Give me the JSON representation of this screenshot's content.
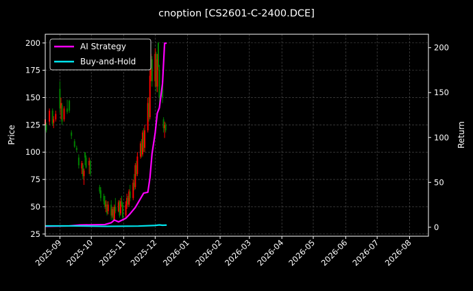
{
  "chart_data": {
    "type": "candlestick+line",
    "title": "cnoption [CS2601-C-2400.DCE]",
    "ylabel": "Price",
    "y2label": "Return",
    "ylim": [
      23,
      208
    ],
    "y2lim": [
      -10,
      215
    ],
    "xlim": [
      "2025-08-18",
      "2026-08-19"
    ],
    "grid": true,
    "legend_placement": "top-left",
    "yticks": [
      25,
      50,
      75,
      100,
      125,
      150,
      175,
      200
    ],
    "y2ticks": [
      0,
      50,
      100,
      150,
      200
    ],
    "xticks": [
      "2025-09",
      "2025-10",
      "2025-11",
      "2025-12",
      "2026-01",
      "2026-02",
      "2026-03",
      "2026-04",
      "2026-05",
      "2026-06",
      "2026-07",
      "2026-08"
    ],
    "up_color": "#ff0000",
    "down_color": "#008000",
    "candles_columns": [
      "date",
      "open",
      "high",
      "low",
      "close"
    ],
    "candles": [
      [
        "2025-08-18",
        125,
        135,
        122,
        130
      ],
      [
        "2025-08-19",
        125,
        127,
        118,
        120
      ],
      [
        "2025-08-22",
        128,
        140,
        125,
        138
      ],
      [
        "2025-08-25",
        138,
        140,
        124,
        126
      ],
      [
        "2025-08-26",
        127,
        133,
        122,
        130
      ],
      [
        "2025-08-28",
        130,
        138,
        128,
        135
      ],
      [
        "2025-09-01",
        158,
        165,
        136,
        140
      ],
      [
        "2025-09-02",
        140,
        150,
        130,
        145
      ],
      [
        "2025-09-03",
        143,
        145,
        125,
        128
      ],
      [
        "2025-09-05",
        130,
        142,
        128,
        140
      ],
      [
        "2025-09-08",
        140,
        148,
        135,
        137
      ],
      [
        "2025-09-10",
        147,
        148,
        136,
        138
      ],
      [
        "2025-09-12",
        118,
        120,
        112,
        115
      ],
      [
        "2025-09-15",
        110,
        112,
        104,
        105
      ],
      [
        "2025-09-17",
        104,
        106,
        100,
        102
      ],
      [
        "2025-09-19",
        95,
        98,
        85,
        88
      ],
      [
        "2025-09-22",
        85,
        92,
        80,
        90
      ],
      [
        "2025-09-23",
        88,
        90,
        75,
        78
      ],
      [
        "2025-09-24",
        78,
        85,
        70,
        83
      ],
      [
        "2025-09-25",
        100,
        100,
        88,
        95
      ],
      [
        "2025-09-26",
        95,
        97,
        85,
        86
      ],
      [
        "2025-09-29",
        88,
        95,
        80,
        92
      ],
      [
        "2025-09-30",
        92,
        93,
        78,
        80
      ],
      [
        "2025-10-09",
        68,
        70,
        62,
        64
      ],
      [
        "2025-10-10",
        65,
        68,
        55,
        58
      ],
      [
        "2025-10-13",
        60,
        62,
        52,
        55
      ],
      [
        "2025-10-14",
        55,
        60,
        48,
        50
      ],
      [
        "2025-10-15",
        50,
        56,
        45,
        52
      ],
      [
        "2025-10-16",
        52,
        55,
        42,
        44
      ],
      [
        "2025-10-17",
        46,
        55,
        43,
        52
      ],
      [
        "2025-10-20",
        52,
        56,
        38,
        42
      ],
      [
        "2025-10-21",
        42,
        50,
        40,
        48
      ],
      [
        "2025-10-22",
        48,
        50,
        36,
        38
      ],
      [
        "2025-10-23",
        38,
        52,
        37,
        50
      ],
      [
        "2025-10-24",
        50,
        58,
        44,
        46
      ],
      [
        "2025-10-27",
        46,
        56,
        45,
        54
      ],
      [
        "2025-10-28",
        55,
        56,
        40,
        42
      ],
      [
        "2025-10-29",
        44,
        58,
        42,
        55
      ],
      [
        "2025-10-30",
        55,
        60,
        50,
        52
      ],
      [
        "2025-10-31",
        52,
        54,
        38,
        40
      ],
      [
        "2025-11-03",
        42,
        55,
        40,
        52
      ],
      [
        "2025-11-04",
        52,
        62,
        48,
        58
      ],
      [
        "2025-11-05",
        58,
        60,
        50,
        52
      ],
      [
        "2025-11-06",
        52,
        66,
        50,
        64
      ],
      [
        "2025-11-07",
        64,
        70,
        55,
        58
      ],
      [
        "2025-11-10",
        58,
        75,
        56,
        72
      ],
      [
        "2025-11-11",
        72,
        80,
        65,
        68
      ],
      [
        "2025-11-12",
        68,
        90,
        66,
        88
      ],
      [
        "2025-11-13",
        88,
        92,
        78,
        80
      ],
      [
        "2025-11-14",
        80,
        100,
        78,
        96
      ],
      [
        "2025-11-17",
        96,
        110,
        94,
        108
      ],
      [
        "2025-11-18",
        108,
        112,
        95,
        98
      ],
      [
        "2025-11-19",
        98,
        120,
        96,
        118
      ],
      [
        "2025-11-20",
        118,
        122,
        100,
        104
      ],
      [
        "2025-11-21",
        104,
        125,
        100,
        120
      ],
      [
        "2025-11-24",
        120,
        150,
        118,
        145
      ],
      [
        "2025-11-25",
        145,
        150,
        128,
        132
      ],
      [
        "2025-11-26",
        132,
        175,
        130,
        170
      ],
      [
        "2025-11-27",
        170,
        190,
        165,
        185
      ],
      [
        "2025-11-28",
        185,
        188,
        160,
        165
      ],
      [
        "2025-12-01",
        165,
        195,
        160,
        190
      ],
      [
        "2025-12-02",
        190,
        192,
        155,
        160
      ],
      [
        "2025-12-03",
        160,
        190,
        155,
        185
      ],
      [
        "2025-12-04",
        200,
        201,
        175,
        178
      ],
      [
        "2025-12-05",
        175,
        180,
        140,
        150
      ],
      [
        "2025-12-08",
        165,
        168,
        145,
        150
      ],
      [
        "2025-12-09",
        130,
        132,
        118,
        122
      ],
      [
        "2025-12-10",
        122,
        128,
        113,
        125
      ],
      [
        "2025-12-11",
        125,
        127,
        118,
        120
      ]
    ],
    "series": [
      {
        "name": "AI Strategy",
        "color": "#ff00ff",
        "axis": "right",
        "points": [
          [
            "2025-08-18",
            1
          ],
          [
            "2025-09-10",
            1.5
          ],
          [
            "2025-09-20",
            2.5
          ],
          [
            "2025-10-14",
            3
          ],
          [
            "2025-10-20",
            5
          ],
          [
            "2025-10-23",
            8
          ],
          [
            "2025-10-27",
            6
          ],
          [
            "2025-11-03",
            10
          ],
          [
            "2025-11-07",
            15
          ],
          [
            "2025-11-12",
            22
          ],
          [
            "2025-11-17",
            32
          ],
          [
            "2025-11-20",
            38
          ],
          [
            "2025-11-24",
            39
          ],
          [
            "2025-11-26",
            55
          ],
          [
            "2025-11-28",
            82
          ],
          [
            "2025-12-01",
            105
          ],
          [
            "2025-12-03",
            127
          ],
          [
            "2025-12-05",
            133
          ],
          [
            "2025-12-08",
            160
          ],
          [
            "2025-12-10",
            205
          ],
          [
            "2025-12-12",
            205
          ]
        ]
      },
      {
        "name": "Buy-and-Hold",
        "color": "#00e5ee",
        "axis": "right",
        "points": [
          [
            "2025-08-18",
            1.5
          ],
          [
            "2025-09-15",
            1.5
          ],
          [
            "2025-10-15",
            1
          ],
          [
            "2025-11-15",
            1.3
          ],
          [
            "2025-12-01",
            2
          ],
          [
            "2025-12-05",
            2.6
          ],
          [
            "2025-12-08",
            2.2
          ],
          [
            "2025-12-12",
            2.4
          ]
        ]
      }
    ]
  }
}
